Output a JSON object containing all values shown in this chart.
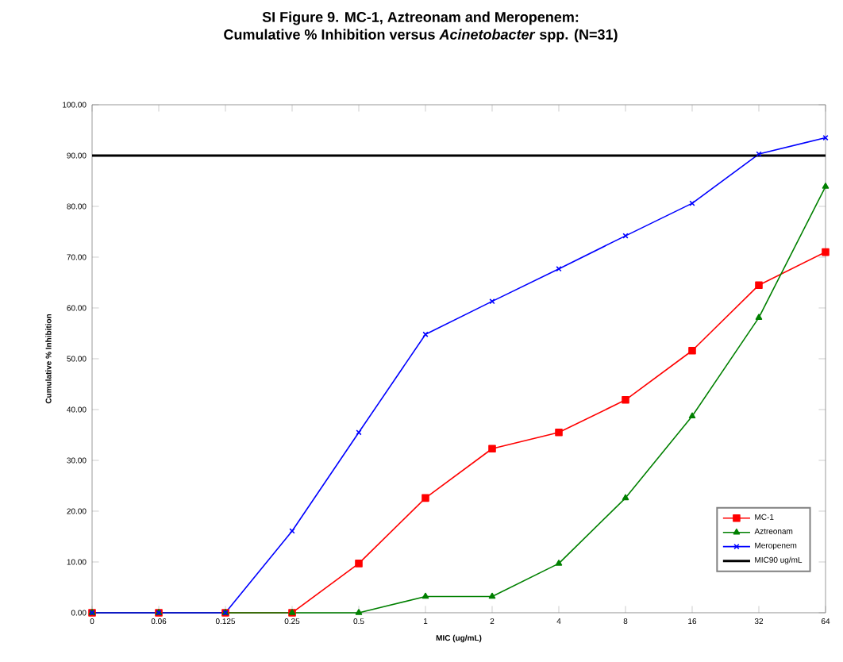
{
  "chart_data": {
    "type": "line",
    "title": "SI Figure 9. MC-1, Aztreonam and Meropenem:",
    "subtitle": "Cumulative % Inhibition versus *Acinetobacter* spp. (N=31)",
    "xlabel": "MIC (ug/mL)",
    "ylabel": "Cumulative % Inhibition",
    "categories": [
      "0",
      "0.06",
      "0.125",
      "0.25",
      "0.5",
      "1",
      "2",
      "4",
      "8",
      "16",
      "32",
      "64"
    ],
    "series": [
      {
        "name": "MC-1",
        "color": "#ff0000",
        "marker": "square",
        "values": [
          0,
          0,
          0,
          0,
          9.7,
          22.6,
          32.3,
          35.5,
          41.9,
          51.6,
          64.5,
          71.0
        ]
      },
      {
        "name": "Aztreonam",
        "color": "#008000",
        "marker": "triangle",
        "values": [
          0,
          0,
          0,
          0,
          0,
          3.2,
          3.2,
          9.7,
          22.6,
          38.7,
          58.1,
          83.9
        ]
      },
      {
        "name": "Meropenem",
        "color": "#0000ff",
        "marker": "cross",
        "values": [
          0,
          0,
          0,
          16.1,
          35.5,
          54.8,
          61.3,
          67.7,
          74.2,
          80.6,
          90.3,
          93.5
        ]
      },
      {
        "name": "MIC90 ug/mL",
        "color": "#000000",
        "marker": "none",
        "values": [
          90,
          90,
          90,
          90,
          90,
          90,
          90,
          90,
          90,
          90,
          90,
          90
        ]
      }
    ],
    "ylim": [
      0,
      100
    ],
    "yticks": [
      {
        "value": 0,
        "label": "0.00"
      },
      {
        "value": 10,
        "label": "10.00"
      },
      {
        "value": 20,
        "label": "20.00"
      },
      {
        "value": 30,
        "label": "30.00"
      },
      {
        "value": 40,
        "label": "40.00"
      },
      {
        "value": 50,
        "label": "50.00"
      },
      {
        "value": 60,
        "label": "60.00"
      },
      {
        "value": 70,
        "label": "70.00"
      },
      {
        "value": 80,
        "label": "80.00"
      },
      {
        "value": 90,
        "label": "90.00"
      },
      {
        "value": 100,
        "label": "100.00"
      }
    ],
    "legend": "bottom right"
  }
}
